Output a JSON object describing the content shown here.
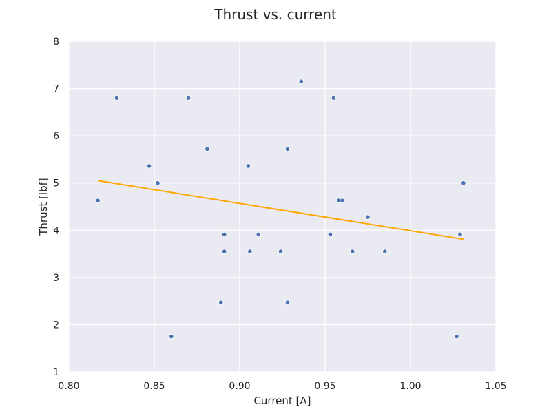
{
  "chart_data": {
    "type": "scatter",
    "title": "Thrust vs. current",
    "xlabel": "Current [A]",
    "ylabel": "Thrust [lbf]",
    "xlim": [
      0.8,
      1.05
    ],
    "ylim": [
      1,
      8
    ],
    "xticks": [
      "0.80",
      "0.85",
      "0.90",
      "0.95",
      "1.00",
      "1.05"
    ],
    "yticks": [
      "1",
      "2",
      "3",
      "4",
      "5",
      "6",
      "7",
      "8"
    ],
    "grid": true,
    "background": "#eaeaf2",
    "point_color": "#4c72b0",
    "fit_color": "#ffa500",
    "points": [
      {
        "x": 0.817,
        "y": 4.63
      },
      {
        "x": 0.828,
        "y": 6.8
      },
      {
        "x": 0.847,
        "y": 5.36
      },
      {
        "x": 0.852,
        "y": 5.0
      },
      {
        "x": 0.86,
        "y": 1.75
      },
      {
        "x": 0.87,
        "y": 6.8
      },
      {
        "x": 0.881,
        "y": 5.72
      },
      {
        "x": 0.889,
        "y": 2.47
      },
      {
        "x": 0.891,
        "y": 3.91
      },
      {
        "x": 0.891,
        "y": 3.55
      },
      {
        "x": 0.905,
        "y": 5.36
      },
      {
        "x": 0.906,
        "y": 3.55
      },
      {
        "x": 0.911,
        "y": 3.91
      },
      {
        "x": 0.924,
        "y": 3.55
      },
      {
        "x": 0.928,
        "y": 5.72
      },
      {
        "x": 0.928,
        "y": 2.47
      },
      {
        "x": 0.936,
        "y": 7.15
      },
      {
        "x": 0.953,
        "y": 3.91
      },
      {
        "x": 0.955,
        "y": 6.8
      },
      {
        "x": 0.958,
        "y": 4.63
      },
      {
        "x": 0.96,
        "y": 4.63
      },
      {
        "x": 0.966,
        "y": 3.55
      },
      {
        "x": 0.975,
        "y": 4.28
      },
      {
        "x": 0.985,
        "y": 3.55
      },
      {
        "x": 1.027,
        "y": 1.75
      },
      {
        "x": 1.029,
        "y": 3.91
      },
      {
        "x": 1.031,
        "y": 5.0
      }
    ],
    "fit_line": {
      "x": [
        0.817,
        1.031
      ],
      "y": [
        5.05,
        3.81
      ]
    }
  }
}
